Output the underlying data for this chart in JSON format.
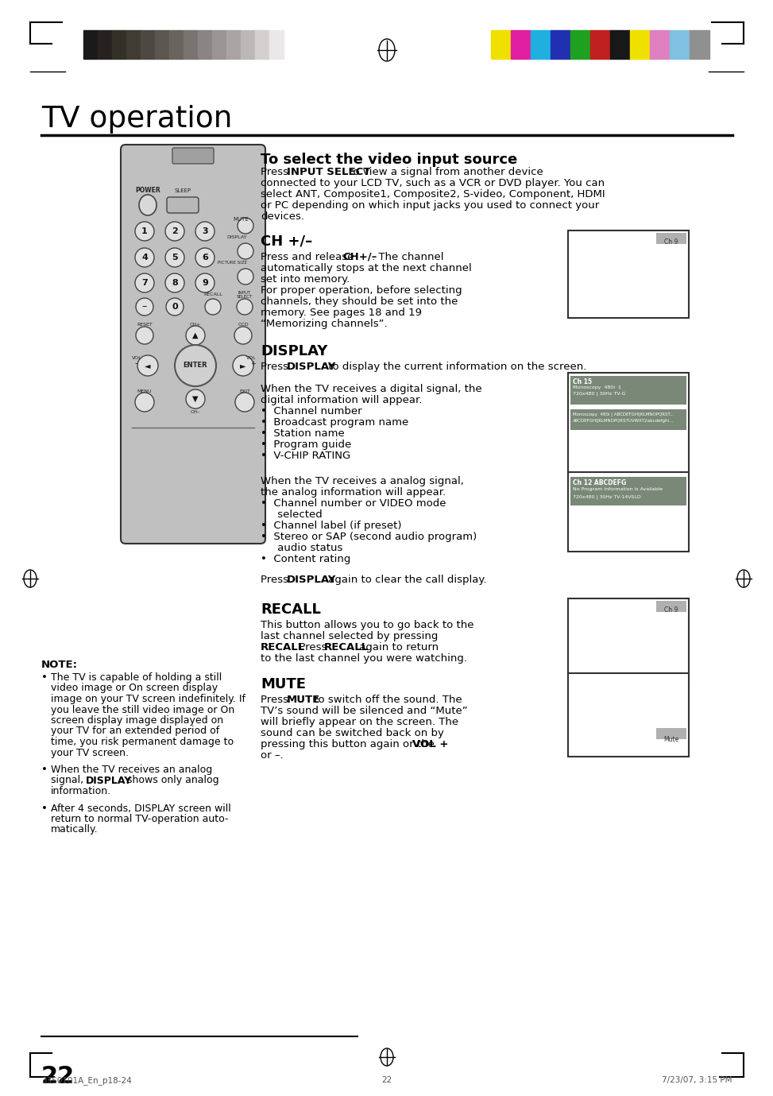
{
  "page_bg": "#ffffff",
  "header_bar_colors_left": [
    "#1a1a1a",
    "#272220",
    "#333028",
    "#403c34",
    "#4e4844",
    "#5c5650",
    "#6a645e",
    "#7a7470",
    "#8a8484",
    "#9a9494",
    "#aaa4a4",
    "#bcb8b8",
    "#d4d0d0",
    "#eae8e8"
  ],
  "header_bar_colors_right": [
    "#f0e000",
    "#e020a0",
    "#20b0e0",
    "#2030b0",
    "#20a020",
    "#c02020",
    "#181818",
    "#f0e000",
    "#e080c0",
    "#80c0e0",
    "#909090"
  ],
  "title": "TV operation",
  "page_number": "22",
  "footer_left": "33S0101A_En_p18-24",
  "footer_center": "22",
  "footer_right": "7/23/07, 3:15 PM"
}
